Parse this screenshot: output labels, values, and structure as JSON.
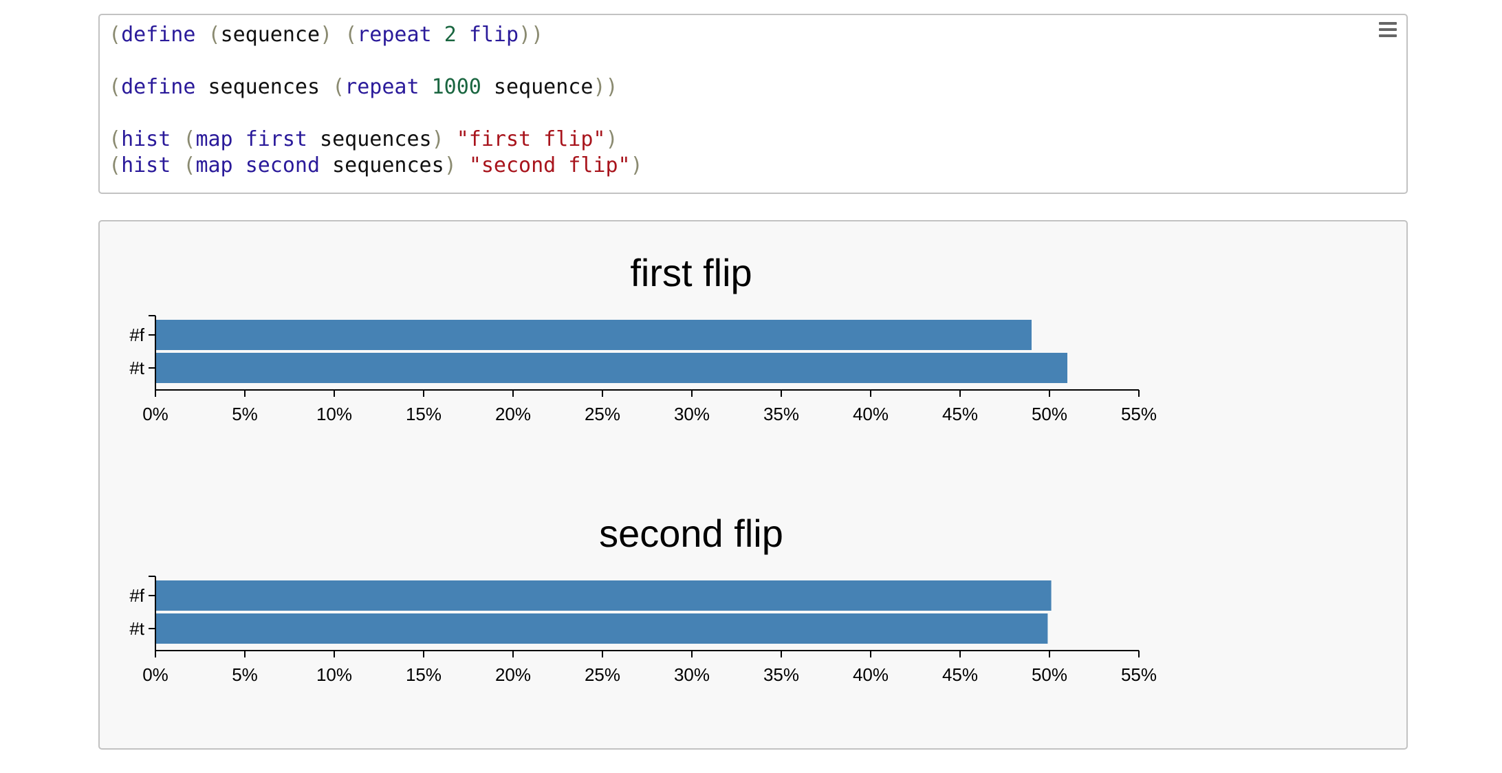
{
  "code": {
    "lines": [
      [
        [
          "p",
          "("
        ],
        [
          "k",
          "define"
        ],
        [
          "v",
          " "
        ],
        [
          "p",
          "("
        ],
        [
          "v",
          "sequence"
        ],
        [
          "p",
          ")"
        ],
        [
          "v",
          " "
        ],
        [
          "p",
          "("
        ],
        [
          "k",
          "repeat"
        ],
        [
          "v",
          " "
        ],
        [
          "n",
          "2"
        ],
        [
          "v",
          " "
        ],
        [
          "k",
          "flip"
        ],
        [
          "p",
          "))"
        ]
      ],
      [],
      [
        [
          "p",
          "("
        ],
        [
          "k",
          "define"
        ],
        [
          "v",
          " sequences "
        ],
        [
          "p",
          "("
        ],
        [
          "k",
          "repeat"
        ],
        [
          "v",
          " "
        ],
        [
          "n",
          "1000"
        ],
        [
          "v",
          " sequence"
        ],
        [
          "p",
          "))"
        ]
      ],
      [],
      [
        [
          "p",
          "("
        ],
        [
          "k",
          "hist"
        ],
        [
          "v",
          " "
        ],
        [
          "p",
          "("
        ],
        [
          "k",
          "map"
        ],
        [
          "v",
          " "
        ],
        [
          "k",
          "first"
        ],
        [
          "v",
          " sequences"
        ],
        [
          "p",
          ")"
        ],
        [
          "v",
          " "
        ],
        [
          "s",
          "\"first flip\""
        ],
        [
          "p",
          ")"
        ]
      ],
      [
        [
          "p",
          "("
        ],
        [
          "k",
          "hist"
        ],
        [
          "v",
          " "
        ],
        [
          "p",
          "("
        ],
        [
          "k",
          "map"
        ],
        [
          "v",
          " "
        ],
        [
          "k",
          "second"
        ],
        [
          "v",
          " sequences"
        ],
        [
          "p",
          ")"
        ],
        [
          "v",
          " "
        ],
        [
          "s",
          "\"second flip\""
        ],
        [
          "p",
          ")"
        ]
      ]
    ],
    "menu_icon": "hamburger-menu-icon"
  },
  "chart_data": [
    {
      "type": "bar",
      "orientation": "horizontal",
      "title": "first flip",
      "categories": [
        "#f",
        "#t"
      ],
      "values": [
        0.49,
        0.51
      ],
      "xlim": [
        0,
        0.55
      ],
      "x_ticks": [
        "0%",
        "5%",
        "10%",
        "15%",
        "20%",
        "25%",
        "30%",
        "35%",
        "40%",
        "45%",
        "50%",
        "55%"
      ],
      "bar_color": "#4682b4"
    },
    {
      "type": "bar",
      "orientation": "horizontal",
      "title": "second flip",
      "categories": [
        "#f",
        "#t"
      ],
      "values": [
        0.501,
        0.499
      ],
      "xlim": [
        0,
        0.55
      ],
      "x_ticks": [
        "0%",
        "5%",
        "10%",
        "15%",
        "20%",
        "25%",
        "30%",
        "35%",
        "40%",
        "45%",
        "50%",
        "55%"
      ],
      "bar_color": "#4682b4"
    }
  ]
}
